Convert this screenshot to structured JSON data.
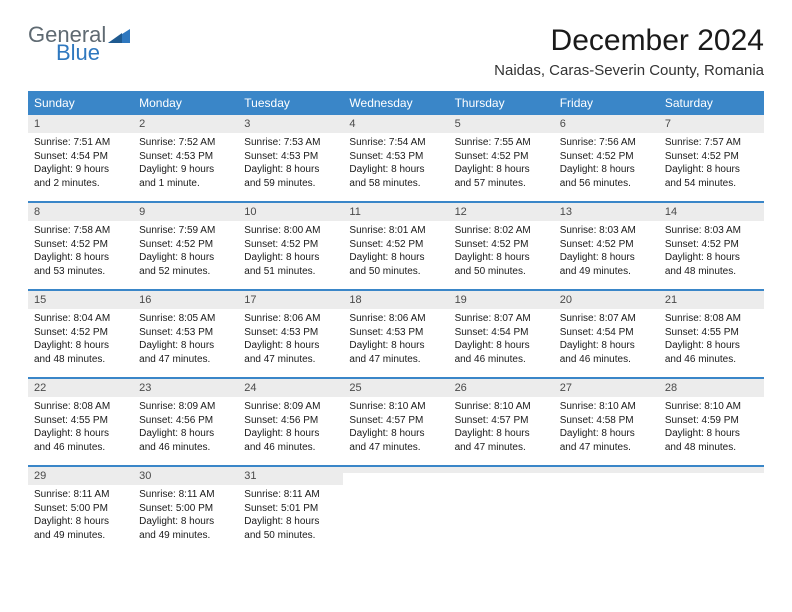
{
  "logo": {
    "general": "General",
    "blue": "Blue"
  },
  "title": {
    "month": "December 2024",
    "location": "Naidas, Caras-Severin County, Romania"
  },
  "colors": {
    "header_bg": "#3a86c8",
    "daynum_bg": "#ececec",
    "logo_gray": "#5f6a72",
    "logo_blue": "#2f78bf"
  },
  "weekdays": [
    {
      "label": "Sunday"
    },
    {
      "label": "Monday"
    },
    {
      "label": "Tuesday"
    },
    {
      "label": "Wednesday"
    },
    {
      "label": "Thursday"
    },
    {
      "label": "Friday"
    },
    {
      "label": "Saturday"
    }
  ],
  "weeks": [
    [
      {
        "n": "1",
        "sr": "Sunrise: 7:51 AM",
        "ss": "Sunset: 4:54 PM",
        "dl": "Daylight: 9 hours and 2 minutes."
      },
      {
        "n": "2",
        "sr": "Sunrise: 7:52 AM",
        "ss": "Sunset: 4:53 PM",
        "dl": "Daylight: 9 hours and 1 minute."
      },
      {
        "n": "3",
        "sr": "Sunrise: 7:53 AM",
        "ss": "Sunset: 4:53 PM",
        "dl": "Daylight: 8 hours and 59 minutes."
      },
      {
        "n": "4",
        "sr": "Sunrise: 7:54 AM",
        "ss": "Sunset: 4:53 PM",
        "dl": "Daylight: 8 hours and 58 minutes."
      },
      {
        "n": "5",
        "sr": "Sunrise: 7:55 AM",
        "ss": "Sunset: 4:52 PM",
        "dl": "Daylight: 8 hours and 57 minutes."
      },
      {
        "n": "6",
        "sr": "Sunrise: 7:56 AM",
        "ss": "Sunset: 4:52 PM",
        "dl": "Daylight: 8 hours and 56 minutes."
      },
      {
        "n": "7",
        "sr": "Sunrise: 7:57 AM",
        "ss": "Sunset: 4:52 PM",
        "dl": "Daylight: 8 hours and 54 minutes."
      }
    ],
    [
      {
        "n": "8",
        "sr": "Sunrise: 7:58 AM",
        "ss": "Sunset: 4:52 PM",
        "dl": "Daylight: 8 hours and 53 minutes."
      },
      {
        "n": "9",
        "sr": "Sunrise: 7:59 AM",
        "ss": "Sunset: 4:52 PM",
        "dl": "Daylight: 8 hours and 52 minutes."
      },
      {
        "n": "10",
        "sr": "Sunrise: 8:00 AM",
        "ss": "Sunset: 4:52 PM",
        "dl": "Daylight: 8 hours and 51 minutes."
      },
      {
        "n": "11",
        "sr": "Sunrise: 8:01 AM",
        "ss": "Sunset: 4:52 PM",
        "dl": "Daylight: 8 hours and 50 minutes."
      },
      {
        "n": "12",
        "sr": "Sunrise: 8:02 AM",
        "ss": "Sunset: 4:52 PM",
        "dl": "Daylight: 8 hours and 50 minutes."
      },
      {
        "n": "13",
        "sr": "Sunrise: 8:03 AM",
        "ss": "Sunset: 4:52 PM",
        "dl": "Daylight: 8 hours and 49 minutes."
      },
      {
        "n": "14",
        "sr": "Sunrise: 8:03 AM",
        "ss": "Sunset: 4:52 PM",
        "dl": "Daylight: 8 hours and 48 minutes."
      }
    ],
    [
      {
        "n": "15",
        "sr": "Sunrise: 8:04 AM",
        "ss": "Sunset: 4:52 PM",
        "dl": "Daylight: 8 hours and 48 minutes."
      },
      {
        "n": "16",
        "sr": "Sunrise: 8:05 AM",
        "ss": "Sunset: 4:53 PM",
        "dl": "Daylight: 8 hours and 47 minutes."
      },
      {
        "n": "17",
        "sr": "Sunrise: 8:06 AM",
        "ss": "Sunset: 4:53 PM",
        "dl": "Daylight: 8 hours and 47 minutes."
      },
      {
        "n": "18",
        "sr": "Sunrise: 8:06 AM",
        "ss": "Sunset: 4:53 PM",
        "dl": "Daylight: 8 hours and 47 minutes."
      },
      {
        "n": "19",
        "sr": "Sunrise: 8:07 AM",
        "ss": "Sunset: 4:54 PM",
        "dl": "Daylight: 8 hours and 46 minutes."
      },
      {
        "n": "20",
        "sr": "Sunrise: 8:07 AM",
        "ss": "Sunset: 4:54 PM",
        "dl": "Daylight: 8 hours and 46 minutes."
      },
      {
        "n": "21",
        "sr": "Sunrise: 8:08 AM",
        "ss": "Sunset: 4:55 PM",
        "dl": "Daylight: 8 hours and 46 minutes."
      }
    ],
    [
      {
        "n": "22",
        "sr": "Sunrise: 8:08 AM",
        "ss": "Sunset: 4:55 PM",
        "dl": "Daylight: 8 hours and 46 minutes."
      },
      {
        "n": "23",
        "sr": "Sunrise: 8:09 AM",
        "ss": "Sunset: 4:56 PM",
        "dl": "Daylight: 8 hours and 46 minutes."
      },
      {
        "n": "24",
        "sr": "Sunrise: 8:09 AM",
        "ss": "Sunset: 4:56 PM",
        "dl": "Daylight: 8 hours and 46 minutes."
      },
      {
        "n": "25",
        "sr": "Sunrise: 8:10 AM",
        "ss": "Sunset: 4:57 PM",
        "dl": "Daylight: 8 hours and 47 minutes."
      },
      {
        "n": "26",
        "sr": "Sunrise: 8:10 AM",
        "ss": "Sunset: 4:57 PM",
        "dl": "Daylight: 8 hours and 47 minutes."
      },
      {
        "n": "27",
        "sr": "Sunrise: 8:10 AM",
        "ss": "Sunset: 4:58 PM",
        "dl": "Daylight: 8 hours and 47 minutes."
      },
      {
        "n": "28",
        "sr": "Sunrise: 8:10 AM",
        "ss": "Sunset: 4:59 PM",
        "dl": "Daylight: 8 hours and 48 minutes."
      }
    ],
    [
      {
        "n": "29",
        "sr": "Sunrise: 8:11 AM",
        "ss": "Sunset: 5:00 PM",
        "dl": "Daylight: 8 hours and 49 minutes."
      },
      {
        "n": "30",
        "sr": "Sunrise: 8:11 AM",
        "ss": "Sunset: 5:00 PM",
        "dl": "Daylight: 8 hours and 49 minutes."
      },
      {
        "n": "31",
        "sr": "Sunrise: 8:11 AM",
        "ss": "Sunset: 5:01 PM",
        "dl": "Daylight: 8 hours and 50 minutes."
      },
      {
        "n": "",
        "sr": "",
        "ss": "",
        "dl": ""
      },
      {
        "n": "",
        "sr": "",
        "ss": "",
        "dl": ""
      },
      {
        "n": "",
        "sr": "",
        "ss": "",
        "dl": ""
      },
      {
        "n": "",
        "sr": "",
        "ss": "",
        "dl": ""
      }
    ]
  ]
}
